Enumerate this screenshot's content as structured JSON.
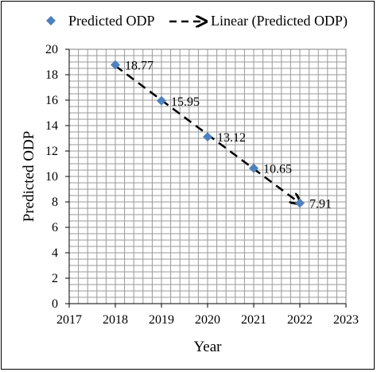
{
  "chart_data": {
    "type": "scatter",
    "title": "",
    "xlabel": "Year",
    "ylabel": "Predicted ODP",
    "xlim": [
      2017,
      2023
    ],
    "ylim": [
      0,
      20
    ],
    "x_ticks": [
      "2017",
      "2018",
      "2019",
      "2020",
      "2021",
      "2022",
      "2023"
    ],
    "y_ticks": [
      "0",
      "2",
      "4",
      "6",
      "8",
      "10",
      "12",
      "14",
      "16",
      "18",
      "20"
    ],
    "grid": true,
    "legend_position": "top",
    "series": [
      {
        "name": "Predicted ODP",
        "marker": "diamond",
        "color": "#4F81BD",
        "x": [
          2018,
          2019,
          2020,
          2021,
          2022
        ],
        "y": [
          18.77,
          15.95,
          13.12,
          10.65,
          7.91
        ],
        "labels": [
          "18.77",
          "15.95",
          "13.12",
          "10.65",
          "7.91"
        ]
      }
    ],
    "trendline": {
      "name": "Linear (Predicted ODP)",
      "style": "dashed-arrow",
      "color": "#000000",
      "x": [
        2018,
        2022
      ],
      "y": [
        18.7,
        7.9
      ]
    }
  }
}
